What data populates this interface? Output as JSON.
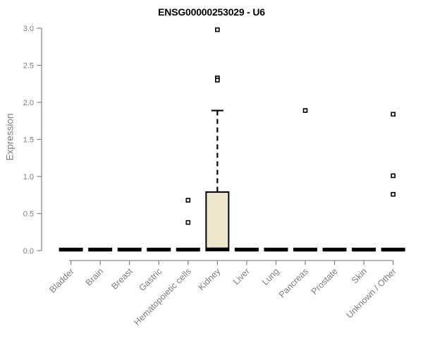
{
  "chart_data": {
    "type": "boxplot",
    "title": "ENSG00000253029 - U6",
    "ylabel": "Expression",
    "xlabel": "",
    "ylim": [
      0.0,
      3.0
    ],
    "yticks": [
      0.0,
      0.5,
      1.0,
      1.5,
      2.0,
      2.5,
      3.0
    ],
    "grid": "off",
    "legend": "none",
    "categories": [
      "Bladder",
      "Brain",
      "Breast",
      "Gastric",
      "Hematopoietic cells",
      "Kidney",
      "Liver",
      "Lung",
      "Pancreas",
      "Prostate",
      "Skin",
      "Unknown / Other"
    ],
    "series": [
      {
        "category": "Bladder",
        "median": 0.01,
        "q1": 0.0,
        "q3": 0.03,
        "whisker_low": 0.0,
        "whisker_high": 0.03,
        "outliers": []
      },
      {
        "category": "Brain",
        "median": 0.01,
        "q1": 0.0,
        "q3": 0.03,
        "whisker_low": 0.0,
        "whisker_high": 0.03,
        "outliers": []
      },
      {
        "category": "Breast",
        "median": 0.01,
        "q1": 0.0,
        "q3": 0.03,
        "whisker_low": 0.0,
        "whisker_high": 0.03,
        "outliers": []
      },
      {
        "category": "Gastric",
        "median": 0.01,
        "q1": 0.0,
        "q3": 0.03,
        "whisker_low": 0.0,
        "whisker_high": 0.03,
        "outliers": []
      },
      {
        "category": "Hematopoietic cells",
        "median": 0.01,
        "q1": 0.0,
        "q3": 0.03,
        "whisker_low": 0.0,
        "whisker_high": 0.03,
        "outliers": [
          0.68,
          0.38
        ]
      },
      {
        "category": "Kidney",
        "median": 0.02,
        "q1": 0.0,
        "q3": 0.79,
        "whisker_low": 0.0,
        "whisker_high": 1.89,
        "outliers": [
          2.98,
          2.33,
          2.3
        ]
      },
      {
        "category": "Liver",
        "median": 0.01,
        "q1": 0.0,
        "q3": 0.03,
        "whisker_low": 0.0,
        "whisker_high": 0.03,
        "outliers": []
      },
      {
        "category": "Lung",
        "median": 0.01,
        "q1": 0.0,
        "q3": 0.03,
        "whisker_low": 0.0,
        "whisker_high": 0.03,
        "outliers": []
      },
      {
        "category": "Pancreas",
        "median": 0.01,
        "q1": 0.0,
        "q3": 0.03,
        "whisker_low": 0.0,
        "whisker_high": 0.03,
        "outliers": [
          1.89
        ]
      },
      {
        "category": "Prostate",
        "median": 0.01,
        "q1": 0.0,
        "q3": 0.03,
        "whisker_low": 0.0,
        "whisker_high": 0.03,
        "outliers": []
      },
      {
        "category": "Skin",
        "median": 0.01,
        "q1": 0.0,
        "q3": 0.03,
        "whisker_low": 0.0,
        "whisker_high": 0.03,
        "outliers": []
      },
      {
        "category": "Unknown / Other",
        "median": 0.01,
        "q1": 0.0,
        "q3": 0.03,
        "whisker_low": 0.0,
        "whisker_high": 0.03,
        "outliers": [
          1.84,
          1.01,
          0.76
        ]
      }
    ],
    "colors": {
      "background": "#ffffff",
      "box_fill": "#ece7cb",
      "box_border": "#000000",
      "marks": "#000000",
      "axis": "#8a8a8a",
      "tick_label": "#7d7d7d",
      "title": "#000000"
    }
  }
}
